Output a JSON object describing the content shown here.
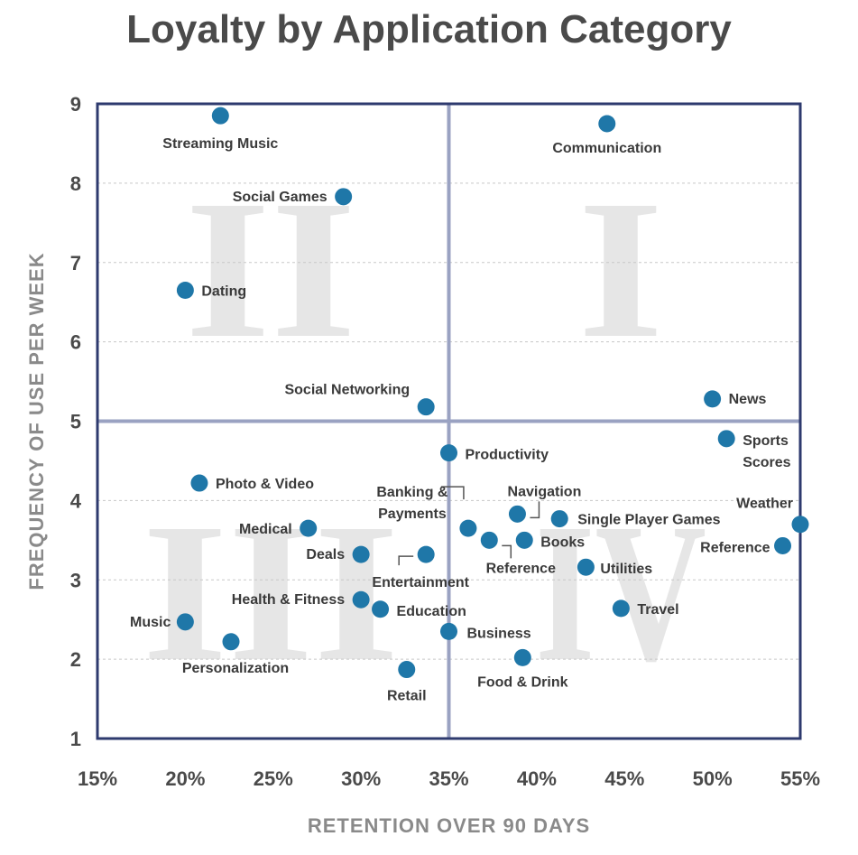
{
  "title": "Loyalty by Application Category",
  "colors": {
    "point": "#1f77a8",
    "frame": "#2e3a6e",
    "divider": "#9aa2c2",
    "grid": "#c8c8c8",
    "quadrant": "#e6e6e6"
  },
  "chart_data": {
    "type": "scatter",
    "title": "Loyalty by Application Category",
    "xlabel": "RETENTION OVER 90 DAYS",
    "ylabel": "FREQUENCY OF USE PER WEEK",
    "xlim": [
      15,
      55
    ],
    "ylim": [
      1,
      9
    ],
    "x_ticks": [
      "15%",
      "20%",
      "25%",
      "30%",
      "35%",
      "40%",
      "45%",
      "50%",
      "55%"
    ],
    "y_ticks": [
      "1",
      "2",
      "3",
      "4",
      "5",
      "6",
      "7",
      "8",
      "9"
    ],
    "grid": "horizontal",
    "dividers": {
      "x": 35,
      "y": 5
    },
    "quadrant_labels": [
      "I",
      "II",
      "III",
      "IV"
    ],
    "points": [
      {
        "label": "Streaming Music",
        "x": 22.0,
        "y": 8.85
      },
      {
        "label": "Communication",
        "x": 44.0,
        "y": 8.75
      },
      {
        "label": "Social Games",
        "x": 29.0,
        "y": 7.83
      },
      {
        "label": "Dating",
        "x": 20.0,
        "y": 6.65
      },
      {
        "label": "Social Networking",
        "x": 33.7,
        "y": 5.18
      },
      {
        "label": "News",
        "x": 50.0,
        "y": 5.28
      },
      {
        "label": "Sports Scores",
        "x": 50.8,
        "y": 4.78
      },
      {
        "label": "Productivity",
        "x": 35.0,
        "y": 4.6
      },
      {
        "label": "Photo & Video",
        "x": 20.8,
        "y": 4.22
      },
      {
        "label": "Navigation",
        "x": 38.9,
        "y": 3.83
      },
      {
        "label": "Single Player Games",
        "x": 41.3,
        "y": 3.77
      },
      {
        "label": "Weather",
        "x": 55.0,
        "y": 3.7
      },
      {
        "label": "Banking & Payments",
        "x": 36.1,
        "y": 3.65
      },
      {
        "label": "Medical",
        "x": 27.0,
        "y": 3.65
      },
      {
        "label": "Reference",
        "x": 37.3,
        "y": 3.5
      },
      {
        "label": "Books",
        "x": 39.3,
        "y": 3.5
      },
      {
        "label": "Reference",
        "x": 54.0,
        "y": 3.43
      },
      {
        "label": "Deals",
        "x": 30.0,
        "y": 3.32
      },
      {
        "label": "Entertainment",
        "x": 33.7,
        "y": 3.32
      },
      {
        "label": "Utilities",
        "x": 42.8,
        "y": 3.16
      },
      {
        "label": "Health & Fitness",
        "x": 30.0,
        "y": 2.75
      },
      {
        "label": "Education",
        "x": 31.1,
        "y": 2.63
      },
      {
        "label": "Travel",
        "x": 44.8,
        "y": 2.64
      },
      {
        "label": "Music",
        "x": 20.0,
        "y": 2.47
      },
      {
        "label": "Business",
        "x": 35.0,
        "y": 2.35
      },
      {
        "label": "Personalization",
        "x": 22.6,
        "y": 2.22
      },
      {
        "label": "Food & Drink",
        "x": 39.2,
        "y": 2.02
      },
      {
        "label": "Retail",
        "x": 32.6,
        "y": 1.87
      }
    ]
  }
}
